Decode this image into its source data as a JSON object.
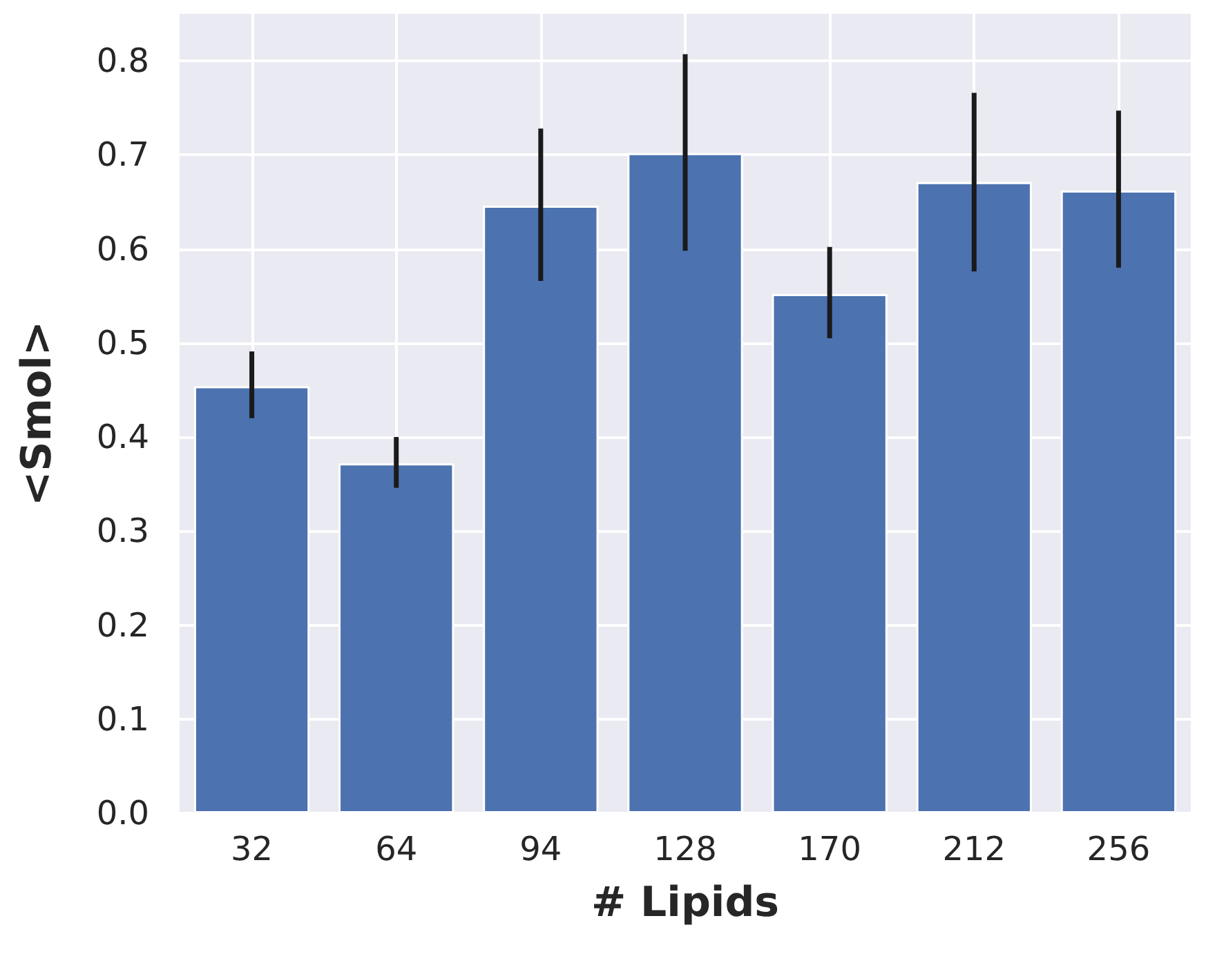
{
  "chart_data": {
    "type": "bar",
    "xlabel": "# Lipids",
    "ylabel": "<Smol>",
    "categories": [
      "32",
      "64",
      "94",
      "128",
      "170",
      "212",
      "256"
    ],
    "values": [
      0.454,
      0.372,
      0.646,
      0.702,
      0.552,
      0.671,
      0.662
    ],
    "errors": [
      [
        0.42,
        0.491
      ],
      [
        0.346,
        0.4
      ],
      [
        0.566,
        0.728
      ],
      [
        0.598,
        0.807
      ],
      [
        0.505,
        0.602
      ],
      [
        0.576,
        0.766
      ],
      [
        0.58,
        0.747
      ]
    ],
    "color": "#4c72b0",
    "ylim": [
      0,
      0.85
    ],
    "yticks": [
      {
        "value": 0,
        "label": "0.0"
      },
      0.1,
      0.2,
      0.3,
      0.4,
      0.5,
      0.6,
      0.7,
      0.8
    ],
    "grid": true
  }
}
